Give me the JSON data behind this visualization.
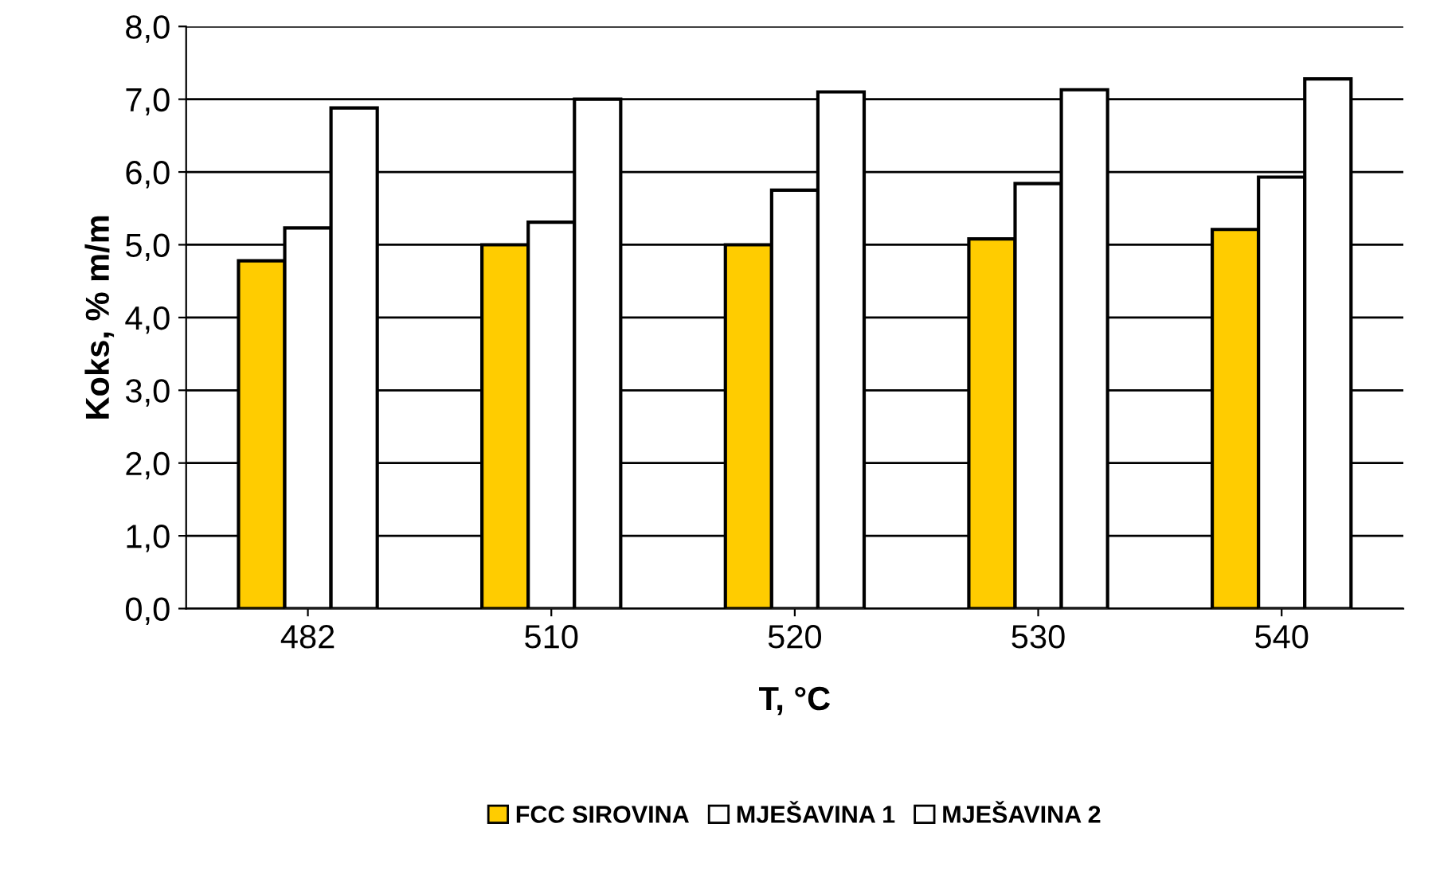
{
  "chart_data": {
    "type": "bar",
    "xlabel": "T, °C",
    "ylabel": "Koks, % m/m",
    "categories": [
      "482",
      "510",
      "520",
      "530",
      "540"
    ],
    "series": [
      {
        "name": "FCC SIROVINA",
        "color": "#ffcc00",
        "values": [
          4.78,
          5.0,
          5.0,
          5.08,
          5.21
        ]
      },
      {
        "name": "MJEŠAVINA 1",
        "color": "#ffffff",
        "values": [
          5.23,
          5.31,
          5.75,
          5.84,
          5.93
        ]
      },
      {
        "name": "MJEŠAVINA 2",
        "color": "#ffffff",
        "values": [
          6.88,
          7.0,
          7.1,
          7.13,
          7.28
        ]
      }
    ],
    "ylim": [
      0,
      8
    ],
    "yticks": [
      {
        "value": 0,
        "label": "0,0"
      },
      {
        "value": 1,
        "label": "1,0"
      },
      {
        "value": 2,
        "label": "2,0"
      },
      {
        "value": 3,
        "label": "3,0"
      },
      {
        "value": 4,
        "label": "4,0"
      },
      {
        "value": 5,
        "label": "5,0"
      },
      {
        "value": 6,
        "label": "6,0"
      },
      {
        "value": 7,
        "label": "7,0"
      },
      {
        "value": 8,
        "label": "8,0"
      }
    ],
    "grid": "y",
    "legend": "bottom"
  }
}
